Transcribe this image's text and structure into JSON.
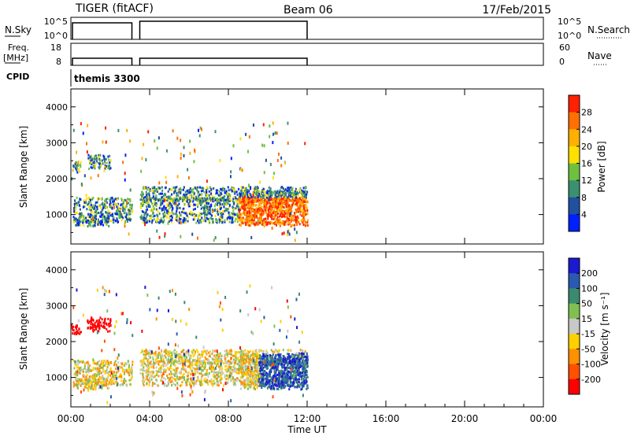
{
  "header": {
    "left": "TIGER (fitACF)",
    "center": "Beam 06",
    "right": "17/Feb/2015"
  },
  "nsky_panel": {
    "left_label": "N.Sky",
    "right_label": "N.Search",
    "left_ticks": [
      "10^5",
      "10^0"
    ],
    "right_ticks": [
      "10^5",
      "10^0"
    ]
  },
  "freq_panel": {
    "left_label_1": "Freq.",
    "left_label_2": "[MHz]",
    "right_label": "Nave",
    "left_ticks": [
      "18",
      "8"
    ],
    "right_ticks": [
      "60",
      "0"
    ]
  },
  "cpid": {
    "label": "CPID",
    "value": "themis 3300"
  },
  "power_panel": {
    "ylabel": "Slant Range [km]",
    "colorbar_label": "Power [dB]",
    "colorbar_ticks": [
      "28",
      "24",
      "20",
      "16",
      "12",
      "8",
      "4"
    ],
    "colorbar_colors": [
      "#ff2000",
      "#ff7000",
      "#ffb000",
      "#ffe000",
      "#70c040",
      "#3a9070",
      "#2050a0",
      "#0020ff"
    ]
  },
  "velocity_panel": {
    "ylabel": "Slant Range [km]",
    "colorbar_label": "Velocity [m s⁻¹]",
    "colorbar_ticks": [
      "200",
      "100",
      "50",
      "15",
      "-15",
      "-50",
      "-100",
      "-200"
    ],
    "colorbar_colors": [
      "#1a1ad0",
      "#2a5ab0",
      "#3a8a70",
      "#80c050",
      "#c8c8c8",
      "#ffd000",
      "#ff9000",
      "#ff5000",
      "#ff0000"
    ]
  },
  "xaxis": {
    "label": "Time UT",
    "ticks": [
      "00:00",
      "04:00",
      "08:00",
      "12:00",
      "16:00",
      "20:00",
      "00:00"
    ]
  },
  "chart_data": {
    "type": "heatmap",
    "x_range_hours": [
      0,
      24
    ],
    "y_range_km": [
      180,
      4500
    ],
    "y_ticks": [
      1000,
      2000,
      3000,
      4000
    ],
    "data_gap_hours": [
      3.1,
      3.5
    ],
    "data_end_hour": 12,
    "nsky_level": "10^5",
    "freq_mhz": 10,
    "clusters": [
      {
        "x0": 0.1,
        "x1": 12,
        "y0": 800,
        "y1": 1500,
        "panel": "both"
      },
      {
        "x0": 0.1,
        "x1": 1.9,
        "y0": 700,
        "y1": 1000,
        "panel": "both"
      },
      {
        "x0": 0.0,
        "x1": 0.5,
        "y0": 2200,
        "y1": 2500,
        "panel": "both"
      },
      {
        "x0": 0.8,
        "x1": 2.0,
        "y0": 2300,
        "y1": 2700,
        "panel": "both"
      },
      {
        "x0": 8.5,
        "x1": 12.0,
        "y0": 700,
        "y1": 1700,
        "panel": "both"
      },
      {
        "x0": 3.5,
        "x1": 12.0,
        "y0": 1400,
        "y1": 1800,
        "panel": "both"
      }
    ]
  }
}
